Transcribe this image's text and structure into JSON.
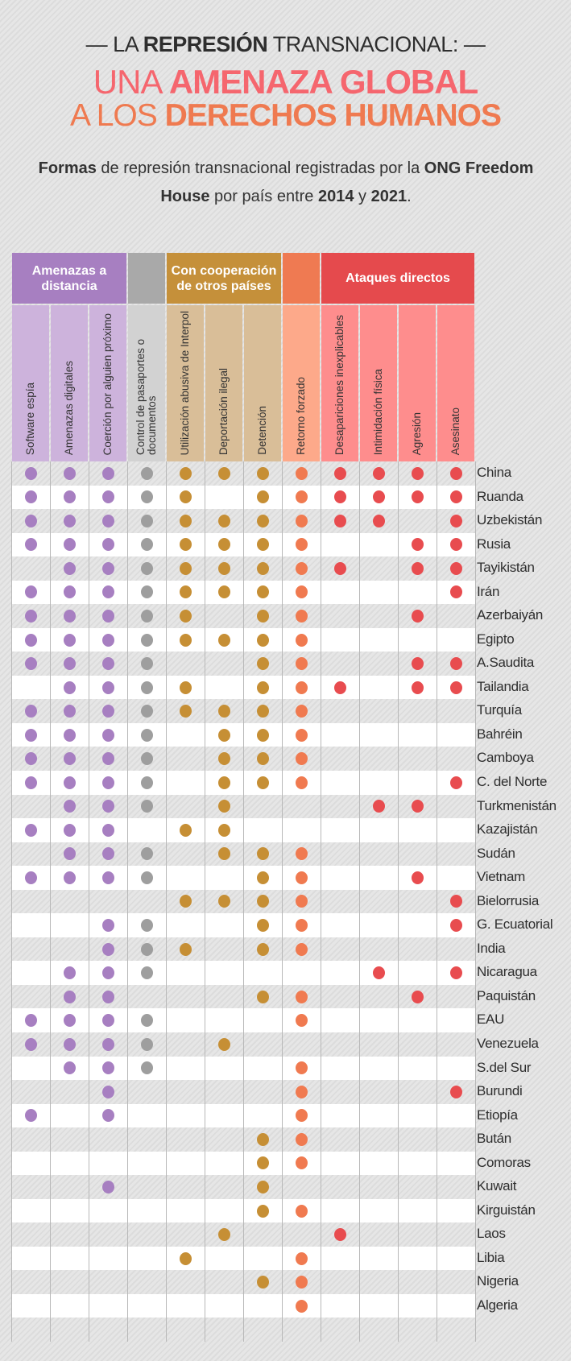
{
  "title": {
    "line1_pre": "LA ",
    "line1_bold": "REPRESIÓN",
    "line1_post": " TRANSNACIONAL:",
    "line2_pre": "UNA ",
    "line2_bold": "AMENAZA GLOBAL",
    "line3_pre": "A LOS ",
    "line3_bold": "DERECHOS HUMANOS"
  },
  "subtitle": {
    "p1": "Formas",
    "p2": " de represión transnacional registradas por la ",
    "p3": "ONG Freedom House",
    "p4": " por país entre ",
    "p5": "2014",
    "p6": " y ",
    "p7": "2021",
    "p8": "."
  },
  "colors": {
    "purple": "#a77fc1",
    "gray": "#9e9e9e",
    "gold": "#c68f35",
    "orange": "#f07a50",
    "red": "#e84c4f"
  },
  "chart_data": {
    "type": "table",
    "title": "Formas de represión transnacional registradas por la ONG Freedom House por país entre 2014 y 2021",
    "groups": [
      {
        "label": "Amenazas a distancia",
        "span": 3,
        "color": "#a77fc1",
        "light": "#cdb3dc"
      },
      {
        "label": "",
        "span": 1,
        "color": "#a9a9a9",
        "light": "#d2d2d2"
      },
      {
        "label": "Con cooperación de otros países",
        "span": 3,
        "color": "#c5903a",
        "light": "#d9be98"
      },
      {
        "label": "",
        "span": 1,
        "color": "#ef7a52",
        "light": "#fda98a"
      },
      {
        "label": "Ataques directos",
        "span": 4,
        "color": "#e54a4d",
        "light": "#fe8d8d"
      }
    ],
    "columns": [
      "Software espía",
      "Amenazas digitales",
      "Coerción por alguien próximo",
      "Control de pasaportes o documentos",
      "Utilización abusiva de Interpol",
      "Deportación ilegal",
      "Detención",
      "Retorno forzado",
      "Desapariciones inexplicables",
      "Intimidación física",
      "Agresión",
      "Asesinato"
    ],
    "dot_colors": [
      "#a77fc1",
      "#a77fc1",
      "#a77fc1",
      "#9e9e9e",
      "#c68f35",
      "#c68f35",
      "#c68f35",
      "#f07a50",
      "#e84c4f",
      "#e84c4f",
      "#e84c4f",
      "#e84c4f"
    ],
    "rows": [
      {
        "country": "China",
        "values": [
          1,
          1,
          1,
          1,
          1,
          1,
          1,
          1,
          1,
          1,
          1,
          1
        ]
      },
      {
        "country": "Ruanda",
        "values": [
          1,
          1,
          1,
          1,
          1,
          0,
          1,
          1,
          1,
          1,
          1,
          1
        ]
      },
      {
        "country": "Uzbekistán",
        "values": [
          1,
          1,
          1,
          1,
          1,
          1,
          1,
          1,
          1,
          1,
          0,
          1
        ]
      },
      {
        "country": "Rusia",
        "values": [
          1,
          1,
          1,
          1,
          1,
          1,
          1,
          1,
          0,
          0,
          1,
          1
        ]
      },
      {
        "country": "Tayikistán",
        "values": [
          0,
          1,
          1,
          1,
          1,
          1,
          1,
          1,
          1,
          0,
          1,
          1
        ]
      },
      {
        "country": "Irán",
        "values": [
          1,
          1,
          1,
          1,
          1,
          1,
          1,
          1,
          0,
          0,
          0,
          1
        ]
      },
      {
        "country": "Azerbaiyán",
        "values": [
          1,
          1,
          1,
          1,
          1,
          0,
          1,
          1,
          0,
          0,
          1,
          0
        ]
      },
      {
        "country": "Egipto",
        "values": [
          1,
          1,
          1,
          1,
          1,
          1,
          1,
          1,
          0,
          0,
          0,
          0
        ]
      },
      {
        "country": "A.Saudita",
        "values": [
          1,
          1,
          1,
          1,
          0,
          0,
          1,
          1,
          0,
          0,
          1,
          1
        ]
      },
      {
        "country": "Tailandia",
        "values": [
          0,
          1,
          1,
          1,
          1,
          0,
          1,
          1,
          1,
          0,
          1,
          1
        ]
      },
      {
        "country": "Turquía",
        "values": [
          1,
          1,
          1,
          1,
          1,
          1,
          1,
          1,
          0,
          0,
          0,
          0
        ]
      },
      {
        "country": "Bahréin",
        "values": [
          1,
          1,
          1,
          1,
          0,
          1,
          1,
          1,
          0,
          0,
          0,
          0
        ]
      },
      {
        "country": "Camboya",
        "values": [
          1,
          1,
          1,
          1,
          0,
          1,
          1,
          1,
          0,
          0,
          0,
          0
        ]
      },
      {
        "country": "C. del Norte",
        "values": [
          1,
          1,
          1,
          1,
          0,
          1,
          1,
          1,
          0,
          0,
          0,
          1
        ]
      },
      {
        "country": "Turkmenistán",
        "values": [
          0,
          1,
          1,
          1,
          0,
          1,
          0,
          0,
          0,
          1,
          1,
          0
        ]
      },
      {
        "country": "Kazajistán",
        "values": [
          1,
          1,
          1,
          0,
          1,
          1,
          0,
          0,
          0,
          0,
          0,
          0
        ]
      },
      {
        "country": "Sudán",
        "values": [
          0,
          1,
          1,
          1,
          0,
          1,
          1,
          1,
          0,
          0,
          0,
          0
        ]
      },
      {
        "country": "Vietnam",
        "values": [
          1,
          1,
          1,
          1,
          0,
          0,
          1,
          1,
          0,
          0,
          1,
          0
        ]
      },
      {
        "country": "Bielorrusia",
        "values": [
          0,
          0,
          0,
          0,
          1,
          1,
          1,
          1,
          0,
          0,
          0,
          1
        ]
      },
      {
        "country": "G. Ecuatorial",
        "values": [
          0,
          0,
          1,
          1,
          0,
          0,
          1,
          1,
          0,
          0,
          0,
          1
        ]
      },
      {
        "country": "India",
        "values": [
          0,
          0,
          1,
          1,
          1,
          0,
          1,
          1,
          0,
          0,
          0,
          0
        ]
      },
      {
        "country": "Nicaragua",
        "values": [
          0,
          1,
          1,
          1,
          0,
          0,
          0,
          0,
          0,
          1,
          0,
          1
        ]
      },
      {
        "country": "Paquistán",
        "values": [
          0,
          1,
          1,
          0,
          0,
          0,
          1,
          1,
          0,
          0,
          1,
          0
        ]
      },
      {
        "country": "EAU",
        "values": [
          1,
          1,
          1,
          1,
          0,
          0,
          0,
          1,
          0,
          0,
          0,
          0
        ]
      },
      {
        "country": "Venezuela",
        "values": [
          1,
          1,
          1,
          1,
          0,
          1,
          0,
          0,
          0,
          0,
          0,
          0
        ]
      },
      {
        "country": "S.del Sur",
        "values": [
          0,
          1,
          1,
          1,
          0,
          0,
          0,
          1,
          0,
          0,
          0,
          0
        ]
      },
      {
        "country": "Burundi",
        "values": [
          0,
          0,
          1,
          0,
          0,
          0,
          0,
          1,
          0,
          0,
          0,
          1
        ]
      },
      {
        "country": "Etiopía",
        "values": [
          1,
          0,
          1,
          0,
          0,
          0,
          0,
          1,
          0,
          0,
          0,
          0
        ]
      },
      {
        "country": "Bután",
        "values": [
          0,
          0,
          0,
          0,
          0,
          0,
          1,
          1,
          0,
          0,
          0,
          0
        ]
      },
      {
        "country": "Comoras",
        "values": [
          0,
          0,
          0,
          0,
          0,
          0,
          1,
          1,
          0,
          0,
          0,
          0
        ]
      },
      {
        "country": "Kuwait",
        "values": [
          0,
          0,
          1,
          0,
          0,
          0,
          1,
          0,
          0,
          0,
          0,
          0
        ]
      },
      {
        "country": "Kirguistán",
        "values": [
          0,
          0,
          0,
          0,
          0,
          0,
          1,
          1,
          0,
          0,
          0,
          0
        ]
      },
      {
        "country": "Laos",
        "values": [
          0,
          0,
          0,
          0,
          0,
          1,
          0,
          0,
          1,
          0,
          0,
          0
        ]
      },
      {
        "country": "Libia",
        "values": [
          0,
          0,
          0,
          0,
          1,
          0,
          0,
          1,
          0,
          0,
          0,
          0
        ]
      },
      {
        "country": "Nigeria",
        "values": [
          0,
          0,
          0,
          0,
          0,
          0,
          1,
          1,
          0,
          0,
          0,
          0
        ]
      },
      {
        "country": "Algeria",
        "values": [
          0,
          0,
          0,
          0,
          0,
          0,
          0,
          1,
          0,
          0,
          0,
          0
        ]
      }
    ]
  }
}
